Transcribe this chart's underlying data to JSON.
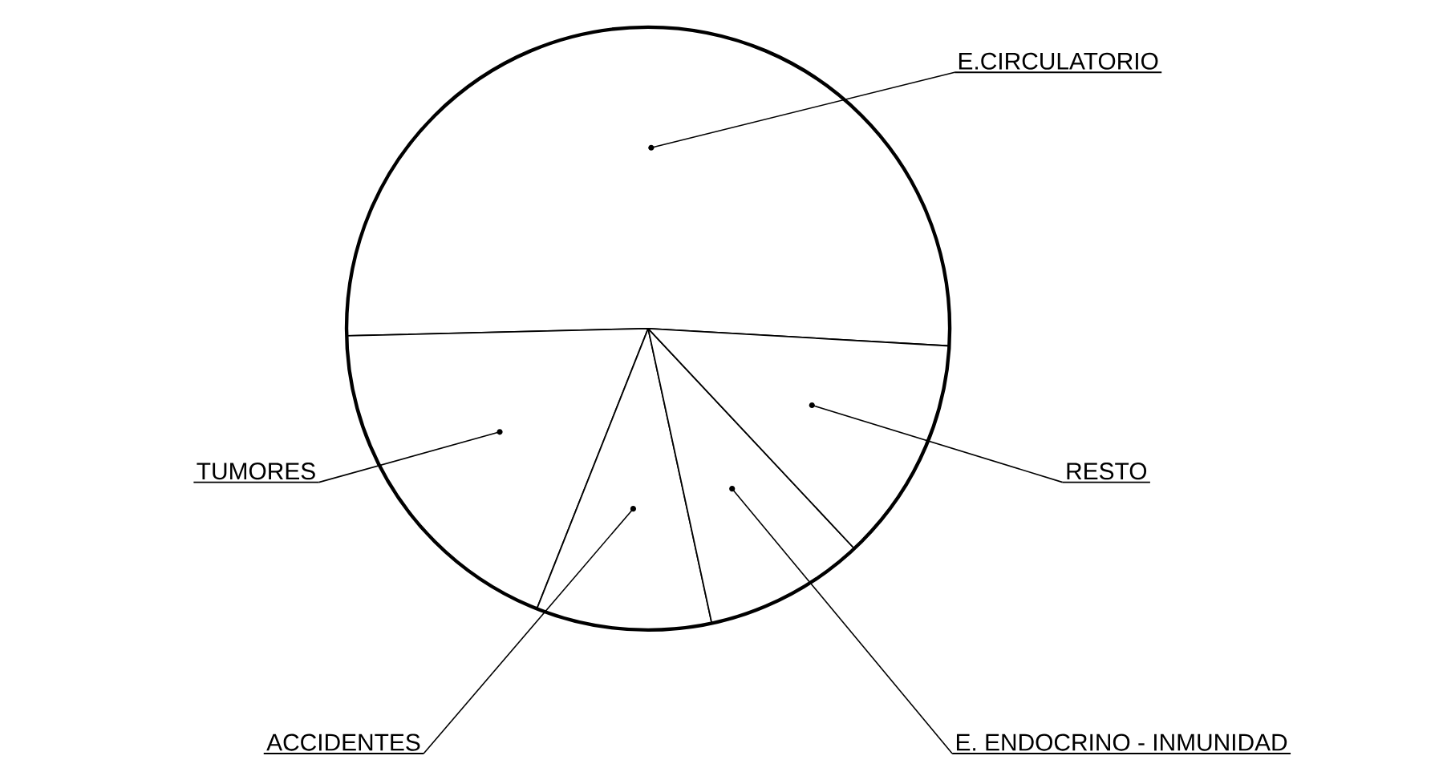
{
  "chart_data": {
    "type": "pie",
    "categories": [
      "E.CIRCULATORIO",
      "TUMORES",
      "ACCIDENTES",
      "E. ENDOCRINO - INMUNIDAD",
      "RESTO"
    ],
    "values": [
      51.3,
      18.6,
      9.4,
      8.6,
      12.1
    ],
    "colors": [
      "#ffffff",
      "#ffffff",
      "#ffffff",
      "#ffffff",
      "#ffffff"
    ]
  }
}
